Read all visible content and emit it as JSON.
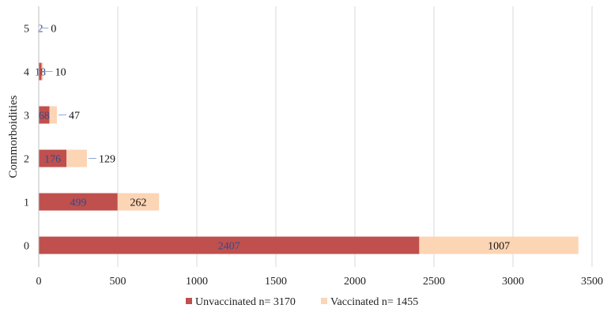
{
  "chart_data": {
    "type": "bar",
    "orientation": "horizontal",
    "stacked": true,
    "title": "",
    "xlabel": "",
    "ylabel": "Commorboidities",
    "categories": [
      "0",
      "1",
      "2",
      "3",
      "4",
      "5"
    ],
    "xlim": [
      0,
      3500
    ],
    "xticks": [
      0,
      500,
      1000,
      1500,
      2000,
      2500,
      3000,
      3500
    ],
    "grid": "vertical",
    "legend_position": "bottom",
    "series": [
      {
        "name": "Unvaccinated n= 3170",
        "color": "#c0504d",
        "label_color": "#2f4b8c",
        "values": [
          2407,
          499,
          176,
          68,
          18,
          2
        ]
      },
      {
        "name": "Vaccinated n= 1455",
        "color": "#fcd5b5",
        "label_color": "#111111",
        "values": [
          1007,
          262,
          129,
          47,
          10,
          0
        ]
      }
    ]
  }
}
